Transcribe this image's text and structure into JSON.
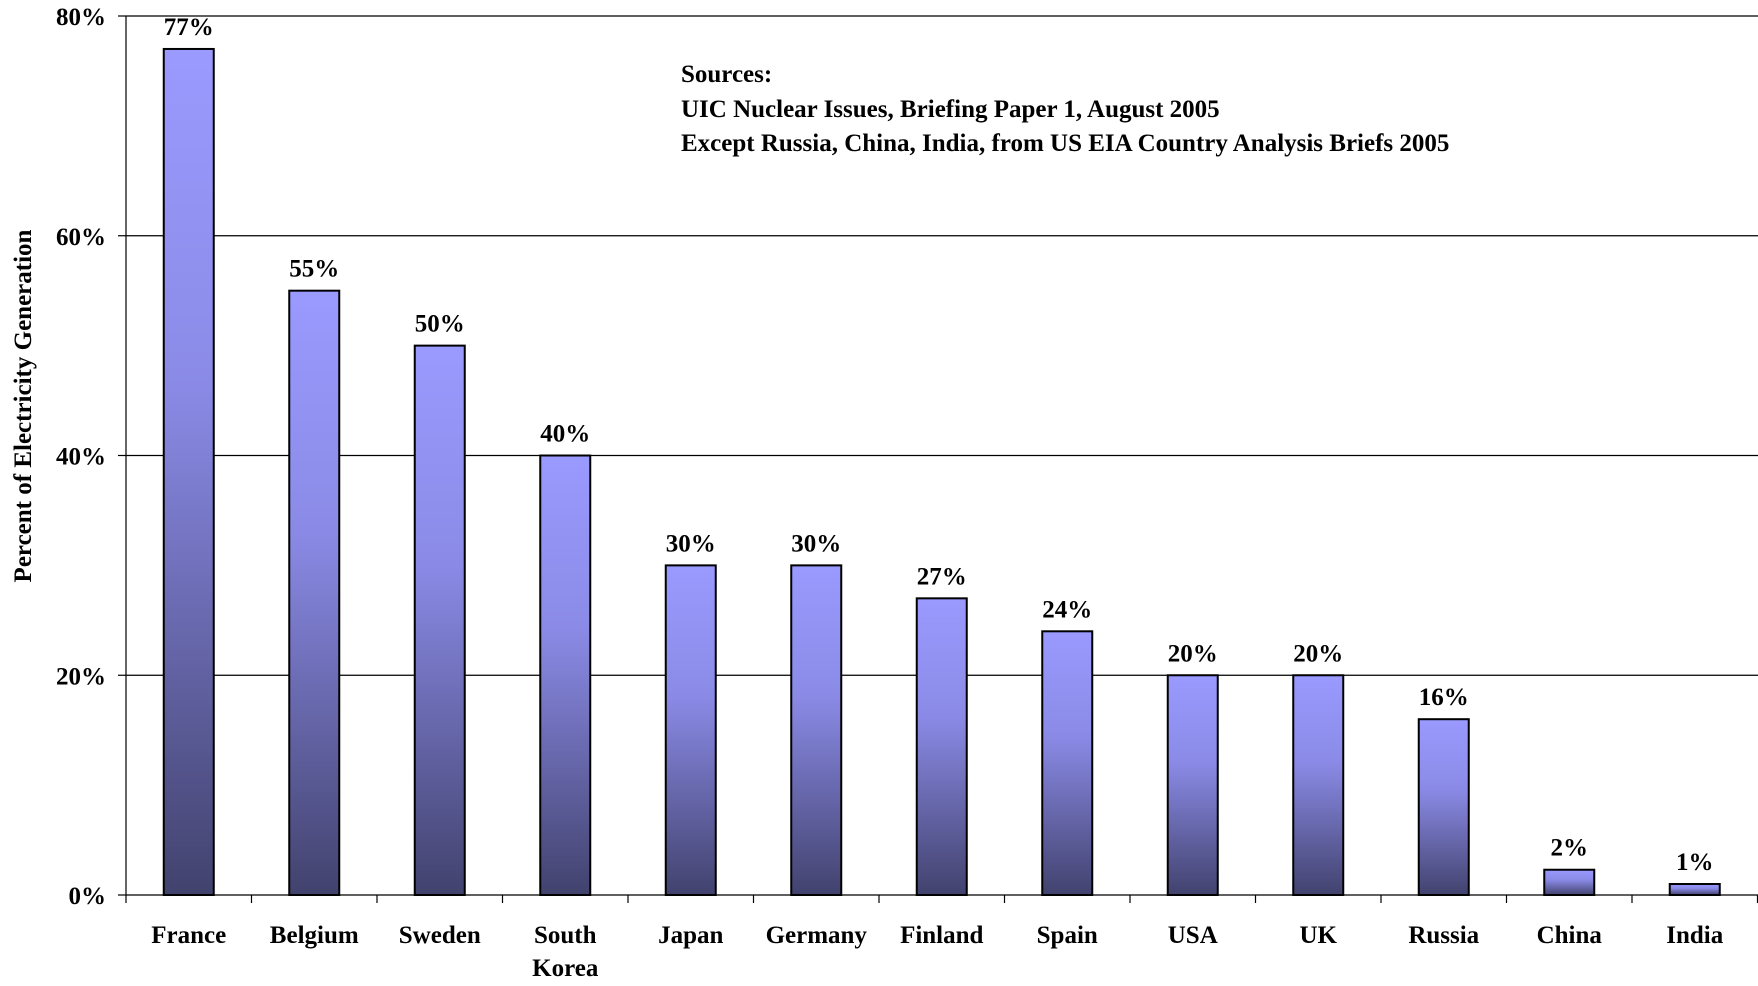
{
  "chart_data": {
    "type": "bar",
    "categories": [
      "France",
      "Belgium",
      "Sweden",
      "South Korea",
      "Japan",
      "Germany",
      "Finland",
      "Spain",
      "USA",
      "UK",
      "Russia",
      "China",
      "India"
    ],
    "category_label_lines": [
      [
        "France"
      ],
      [
        "Belgium"
      ],
      [
        "Sweden"
      ],
      [
        "South",
        "Korea"
      ],
      [
        "Japan"
      ],
      [
        "Germany"
      ],
      [
        "Finland"
      ],
      [
        "Spain"
      ],
      [
        "USA"
      ],
      [
        "UK"
      ],
      [
        "Russia"
      ],
      [
        "China"
      ],
      [
        "India"
      ]
    ],
    "values": [
      77,
      55,
      50,
      40,
      30,
      30,
      27,
      24,
      20,
      20,
      16,
      2.3,
      1
    ],
    "data_labels": [
      "77%",
      "55%",
      "50%",
      "40%",
      "30%",
      "30%",
      "27%",
      "24%",
      "20%",
      "20%",
      "16%",
      "2%",
      "1%"
    ],
    "title": "",
    "xlabel": "",
    "ylabel": "Percent of Electricity Generation",
    "ylim": [
      0,
      80
    ],
    "yticks": [
      0,
      20,
      40,
      60,
      80
    ],
    "ytick_labels": [
      "0%",
      "20%",
      "40%",
      "60%",
      "80%"
    ],
    "grid": true,
    "legend": "none",
    "annotation": [
      "Sources:",
      "UIC Nuclear Issues, Briefing Paper 1, August 2005",
      "Except Russia, China, India, from US EIA Country Analysis Briefs 2005"
    ],
    "colors": {
      "bar_top": "#9a9aff",
      "bar_bottom": "#42426e",
      "bar_stroke": "#000000",
      "grid": "#000000"
    }
  }
}
